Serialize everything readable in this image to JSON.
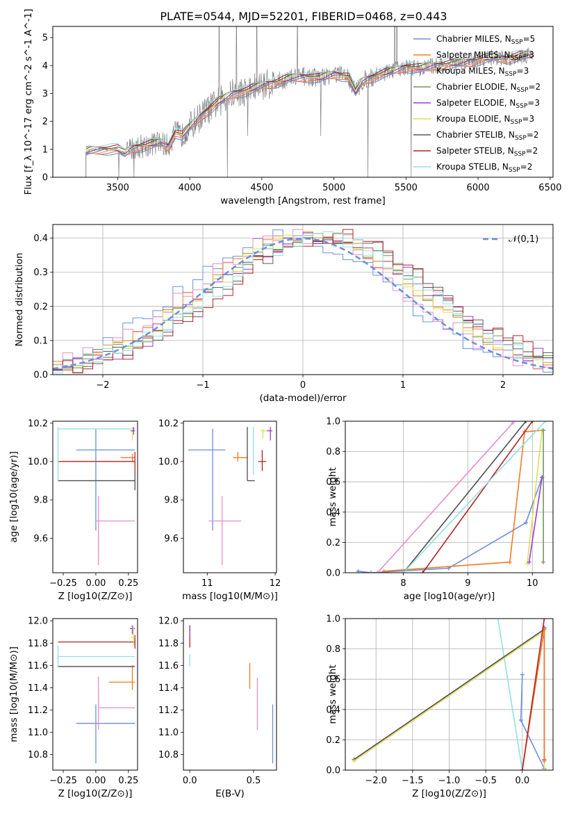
{
  "title": "PLATE=0544, MJD=52201, FIBERID=0468, z=0.443",
  "colors": [
    "#6a8fdc",
    "#ef7d1f",
    "#e88cc8",
    "#4d4d4d",
    "#a7d12b",
    "#6b9a5c",
    "#9b3cc8",
    "#dede55",
    "#5a5a5a",
    "#b22222",
    "#8fe0e6"
  ],
  "chart_data": [
    {
      "type": "line",
      "id": "spectrum",
      "xlabel": "wavelength [Angstrom, rest frame]",
      "ylabel": "Flux [f_λ 10^-17 erg cm^-2 s^-1 A^-1]",
      "xlim": [
        3050,
        6520
      ],
      "ylim": [
        0,
        5.4
      ],
      "xticks": [
        3500,
        4000,
        4500,
        5000,
        5500,
        6000,
        6500
      ],
      "yticks": [
        0,
        1,
        2,
        3,
        4,
        5
      ],
      "grid": false,
      "legend_position": "upper-right",
      "data_color": "#808080",
      "model_shape_x": [
        3280,
        3300,
        3400,
        3500,
        3550,
        3600,
        3700,
        3800,
        3850,
        3900,
        3950,
        4000,
        4100,
        4200,
        4300,
        4400,
        4500,
        4600,
        4700,
        4800,
        4900,
        5000,
        5100,
        5150,
        5200,
        5300,
        5400,
        5500,
        5600,
        5700,
        5800,
        5900,
        6000,
        6100,
        6200,
        6300,
        6380
      ],
      "model_shape_y": [
        0.9,
        0.95,
        1.0,
        1.0,
        0.85,
        1.05,
        1.15,
        1.25,
        1.1,
        1.6,
        1.5,
        1.8,
        2.3,
        2.7,
        3.0,
        3.1,
        3.3,
        3.4,
        3.55,
        3.6,
        3.55,
        3.7,
        3.6,
        3.05,
        3.45,
        3.65,
        3.8,
        3.95,
        3.9,
        4.0,
        4.05,
        4.1,
        4.2,
        4.3,
        4.25,
        4.35,
        4.4
      ],
      "series": [
        {
          "name": "Chabrier MILES, N_SSP=5",
          "color": "#6a8fdc"
        },
        {
          "name": "Salpeter MILES, N_SSP=3",
          "color": "#ef7d1f"
        },
        {
          "name": "Kroupa MILES, N_SSP=3",
          "color": "#e88cc8"
        },
        {
          "name": "Chabrier ELODIE, N_SSP=2",
          "color": "#6b9a5c"
        },
        {
          "name": "Salpeter ELODIE, N_SSP=3",
          "color": "#9b3cc8"
        },
        {
          "name": "Kroupa ELODIE, N_SSP=3",
          "color": "#dede55"
        },
        {
          "name": "Chabrier STELIB, N_SSP=2",
          "color": "#5a5a5a"
        },
        {
          "name": "Salpeter STELIB, N_SSP=2",
          "color": "#b22222"
        },
        {
          "name": "Kroupa STELIB, N_SSP=2",
          "color": "#8fe0e6"
        }
      ]
    },
    {
      "type": "histogram",
      "id": "residuals",
      "xlabel": "(data-model)/error",
      "ylabel": "Normed distribution",
      "xlim": [
        -2.5,
        2.5
      ],
      "ylim": [
        0,
        0.44
      ],
      "xticks": [
        -2,
        -1,
        0,
        1,
        2
      ],
      "yticks": [
        0.0,
        0.1,
        0.2,
        0.3,
        0.4
      ],
      "grid": true,
      "legend": "𝒩(0,1)",
      "legend_position": "upper-right",
      "curve": {
        "mean": 0,
        "sigma": 1,
        "color": "#6a8fdc"
      }
    },
    {
      "type": "errorbar",
      "id": "age-vs-z",
      "xlabel": "Z [log10(Z/Z⊙)]",
      "ylabel": "age  [log10(age/yr)]",
      "xlim": [
        -0.33,
        0.32
      ],
      "ylim": [
        9.42,
        10.21
      ],
      "xticks": [
        -0.25,
        0.0,
        0.25
      ],
      "xticklabels": [
        "−0.25",
        "0.00",
        "0.25"
      ],
      "yticks": [
        9.6,
        9.8,
        10.0,
        10.2
      ],
      "points": [
        {
          "x": 0.0,
          "y": 10.06,
          "xlo": -0.15,
          "xhi": 0.3,
          "ylo": 9.64,
          "yhi": 10.17,
          "color": "#6a8fdc"
        },
        {
          "x": 0.28,
          "y": 10.02,
          "xlo": 0.19,
          "xhi": 0.3,
          "ylo": 10.0,
          "yhi": 10.04,
          "color": "#ef7d1f"
        },
        {
          "x": 0.02,
          "y": 9.69,
          "xlo": 0.0,
          "xhi": 0.3,
          "ylo": 9.46,
          "yhi": 9.82,
          "color": "#e88cc8"
        },
        {
          "x": 0.3,
          "y": 9.9,
          "xlo": -0.29,
          "xhi": 0.3,
          "ylo": 9.85,
          "yhi": 9.95,
          "color": "#4d4d4d"
        },
        {
          "x": 0.3,
          "y": 10.0,
          "xlo": -0.29,
          "xhi": 0.3,
          "ylo": 9.95,
          "yhi": 10.05,
          "color": "#b22222"
        },
        {
          "x": -0.29,
          "y": 10.17,
          "xlo": -0.29,
          "xhi": 0.3,
          "ylo": 9.9,
          "yhi": 10.18,
          "color": "#8fe0e6"
        },
        {
          "x": 0.28,
          "y": 10.16,
          "xlo": 0.26,
          "xhi": 0.3,
          "ylo": 10.11,
          "yhi": 10.18,
          "color": "#dede55"
        },
        {
          "x": 0.29,
          "y": 10.16,
          "xlo": 0.27,
          "xhi": 0.3,
          "ylo": 10.14,
          "yhi": 10.18,
          "color": "#9b3cc8"
        }
      ]
    },
    {
      "type": "errorbar",
      "id": "age-vs-mass",
      "xlabel": "mass [log10(M/M⊙)]",
      "xlim": [
        10.65,
        12.02
      ],
      "ylim": [
        9.42,
        10.21
      ],
      "xticks": [
        11,
        12
      ],
      "yticks": [
        9.6,
        9.8,
        10.0,
        10.2
      ],
      "points": [
        {
          "x": 11.08,
          "y": 10.06,
          "xlo": 10.72,
          "xhi": 11.27,
          "ylo": 9.64,
          "yhi": 10.17,
          "color": "#6a8fdc"
        },
        {
          "x": 11.45,
          "y": 10.02,
          "xlo": 11.38,
          "xhi": 11.6,
          "ylo": 10.0,
          "yhi": 10.05,
          "color": "#ef7d1f"
        },
        {
          "x": 11.22,
          "y": 9.69,
          "xlo": 11.02,
          "xhi": 11.5,
          "ylo": 9.46,
          "yhi": 9.82,
          "color": "#e88cc8"
        },
        {
          "x": 11.59,
          "y": 9.9,
          "xlo": 11.59,
          "xhi": 11.7,
          "ylo": 9.9,
          "yhi": 10.18,
          "color": "#4d4d4d"
        },
        {
          "x": 11.81,
          "y": 10.0,
          "xlo": 11.75,
          "xhi": 11.87,
          "ylo": 9.95,
          "yhi": 10.06,
          "color": "#b22222"
        },
        {
          "x": 11.68,
          "y": 10.17,
          "xlo": 11.68,
          "xhi": 11.68,
          "ylo": 9.93,
          "yhi": 10.18,
          "color": "#8fe0e6"
        },
        {
          "x": 11.93,
          "y": 10.16,
          "xlo": 11.88,
          "xhi": 11.96,
          "ylo": 10.11,
          "yhi": 10.18,
          "color": "#9b3cc8"
        },
        {
          "x": 11.82,
          "y": 10.16,
          "xlo": 11.78,
          "xhi": 11.88,
          "ylo": 10.12,
          "yhi": 10.17,
          "color": "#dede55"
        }
      ]
    },
    {
      "type": "line",
      "id": "weight-vs-age",
      "xlabel": "age  [log10(age/yr)]",
      "ylabel": "mass weight",
      "xlim": [
        7.1,
        10.32
      ],
      "ylim": [
        0,
        1
      ],
      "xticks": [
        8,
        9,
        10
      ],
      "yticks": [
        0.0,
        0.2,
        0.4,
        0.6,
        0.8,
        1.0
      ],
      "grid": true,
      "series": [
        {
          "color": "#6a8fdc",
          "x": [
            7.3,
            7.5,
            8.7,
            9.9,
            10.15
          ],
          "y": [
            0.01,
            0.0,
            0.03,
            0.33,
            0.63
          ]
        },
        {
          "color": "#ef7d1f",
          "x": [
            7.7,
            9.65,
            9.88,
            10.15
          ],
          "y": [
            0.01,
            0.07,
            0.93,
            0.94
          ]
        },
        {
          "color": "#e88cc8",
          "x": [
            7.6,
            9.7
          ],
          "y": [
            0.0,
            0.99
          ]
        },
        {
          "color": "#4d4d4d",
          "x": [
            8.0,
            9.9
          ],
          "y": [
            0.0,
            1.0
          ]
        },
        {
          "color": "#b22222",
          "x": [
            8.3,
            10.0
          ],
          "y": [
            0.0,
            1.0
          ]
        },
        {
          "color": "#8fe0e6",
          "x": [
            8.0,
            10.2
          ],
          "y": [
            0.0,
            1.0
          ]
        },
        {
          "color": "#dede55",
          "x": [
            9.92,
            10.15
          ],
          "y": [
            0.06,
            0.94
          ]
        },
        {
          "color": "#9b3cc8",
          "x": [
            9.95,
            10.15
          ],
          "y": [
            0.07,
            0.63
          ]
        },
        {
          "color": "#6b9a5c",
          "x": [
            10.17,
            10.17
          ],
          "y": [
            0.07,
            0.94
          ]
        }
      ]
    },
    {
      "type": "errorbar",
      "id": "mass-vs-z",
      "xlabel": "Z [log10(Z/Z⊙)]",
      "ylabel": "mass [log10(M/M⊙)]",
      "xlim": [
        -0.33,
        0.32
      ],
      "ylim": [
        10.66,
        12.02
      ],
      "xticks": [
        -0.25,
        0.0,
        0.25
      ],
      "xticklabels": [
        "−0.25",
        "0.00",
        "0.25"
      ],
      "yticks": [
        10.8,
        11.0,
        11.2,
        11.4,
        11.6,
        11.8,
        12.0
      ],
      "points": [
        {
          "x": 0.0,
          "y": 11.08,
          "xlo": -0.15,
          "xhi": 0.3,
          "ylo": 10.72,
          "yhi": 11.25,
          "color": "#6a8fdc"
        },
        {
          "x": 0.28,
          "y": 11.45,
          "xlo": 0.1,
          "xhi": 0.3,
          "ylo": 11.38,
          "yhi": 11.6,
          "color": "#ef7d1f"
        },
        {
          "x": 0.02,
          "y": 11.22,
          "xlo": 0.02,
          "xhi": 0.3,
          "ylo": 11.02,
          "yhi": 11.5,
          "color": "#e88cc8"
        },
        {
          "x": 0.3,
          "y": 11.59,
          "xlo": -0.29,
          "xhi": 0.3,
          "ylo": 11.59,
          "yhi": 11.59,
          "color": "#4d4d4d"
        },
        {
          "x": 0.3,
          "y": 11.81,
          "xlo": -0.29,
          "xhi": 0.3,
          "ylo": 11.75,
          "yhi": 11.87,
          "color": "#b22222"
        },
        {
          "x": -0.29,
          "y": 11.68,
          "xlo": -0.29,
          "xhi": 0.3,
          "ylo": 11.58,
          "yhi": 11.78,
          "color": "#8fe0e6"
        },
        {
          "x": 0.28,
          "y": 11.93,
          "xlo": 0.26,
          "xhi": 0.3,
          "ylo": 11.88,
          "yhi": 11.96,
          "color": "#9b3cc8"
        },
        {
          "x": 0.29,
          "y": 11.85,
          "xlo": 0.27,
          "xhi": 0.3,
          "ylo": 11.78,
          "yhi": 11.95,
          "color": "#dede55"
        }
      ]
    },
    {
      "type": "errorbar",
      "id": "mass-vs-ebv",
      "xlabel": "E(B-V)",
      "xlim": [
        -0.05,
        0.68
      ],
      "ylim": [
        10.66,
        12.02
      ],
      "xticks": [
        0.0,
        0.5
      ],
      "yticks": [
        10.8,
        11.0,
        11.2,
        11.4,
        11.6,
        11.8,
        12.0
      ],
      "points": [
        {
          "x": 0.65,
          "y": 10.98,
          "xlo": 0.65,
          "xhi": 0.65,
          "ylo": 10.72,
          "yhi": 11.25,
          "color": "#6a8fdc"
        },
        {
          "x": 0.47,
          "y": 11.5,
          "xlo": 0.47,
          "xhi": 0.47,
          "ylo": 11.39,
          "yhi": 11.62,
          "color": "#ef7d1f"
        },
        {
          "x": 0.53,
          "y": 11.26,
          "xlo": 0.53,
          "xhi": 0.53,
          "ylo": 11.02,
          "yhi": 11.49,
          "color": "#e88cc8"
        },
        {
          "x": 0.0,
          "y": 11.65,
          "xlo": 0.0,
          "xhi": 0.0,
          "ylo": 11.59,
          "yhi": 11.7,
          "color": "#8fe0e6"
        },
        {
          "x": 0.0,
          "y": 11.86,
          "xlo": 0.0,
          "xhi": 0.0,
          "ylo": 11.76,
          "yhi": 11.96,
          "color": "#b22222"
        },
        {
          "x": 0.0,
          "y": 11.9,
          "xlo": 0.0,
          "xhi": 0.0,
          "ylo": 11.86,
          "yhi": 11.95,
          "color": "#9b3cc8"
        }
      ]
    },
    {
      "type": "line",
      "id": "weight-vs-z",
      "xlabel": "Z [log10(Z/Z⊙)]",
      "ylabel": "mass weight",
      "xlim": [
        -2.42,
        0.42
      ],
      "ylim": [
        0,
        1
      ],
      "xticks": [
        -2.0,
        -1.5,
        -1.0,
        -0.5,
        0.0
      ],
      "xticklabels": [
        "−2.0",
        "−1.5",
        "−1.0",
        "−0.5",
        "0.0"
      ],
      "yticks": [
        0.0,
        0.2,
        0.4,
        0.6,
        0.8,
        1.0
      ],
      "grid": true,
      "series": [
        {
          "color": "#8fe0e6",
          "x": [
            0.0,
            -0.35
          ],
          "y": [
            0.0,
            1.05
          ]
        },
        {
          "color": "#6a8fdc",
          "x": [
            0.0,
            -0.02,
            0.3
          ],
          "y": [
            0.63,
            0.33,
            0.01
          ]
        },
        {
          "color": "#4d4d4d",
          "x": [
            -2.3,
            0.3
          ],
          "y": [
            0.07,
            0.93
          ]
        },
        {
          "color": "#dede55",
          "x": [
            -2.3,
            0.3,
            0.3
          ],
          "y": [
            0.06,
            0.92,
            0.0
          ]
        },
        {
          "color": "#9b3cc8",
          "x": [
            0.3,
            0.3
          ],
          "y": [
            0.07,
            0.94
          ]
        },
        {
          "color": "#ef7d1f",
          "x": [
            0.0,
            0.3,
            0.3
          ],
          "y": [
            0.0,
            0.93,
            0.06
          ]
        },
        {
          "color": "#b22222",
          "x": [
            0.0,
            0.3
          ],
          "y": [
            0.0,
            1.0
          ]
        }
      ]
    }
  ]
}
